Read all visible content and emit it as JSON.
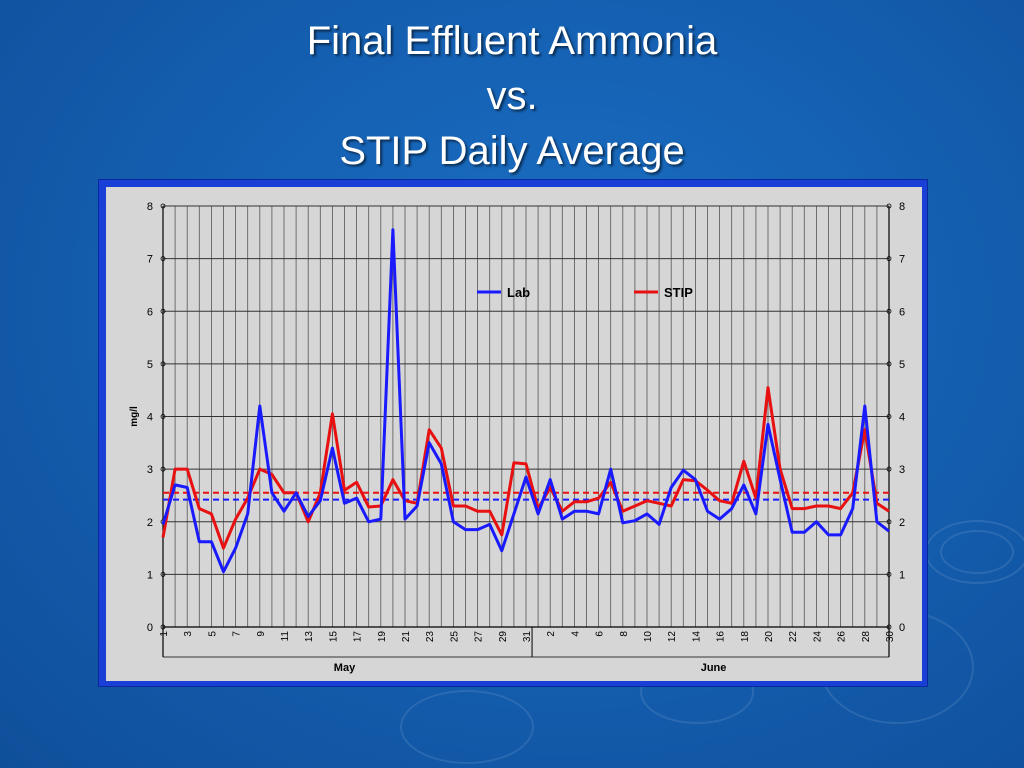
{
  "slide": {
    "title_lines": [
      "Final Effluent Ammonia",
      "vs.",
      "STIP Daily Average"
    ]
  },
  "chart_data": {
    "type": "line",
    "ylabel": "mg/l",
    "ylim": [
      0,
      8
    ],
    "yticks": [
      0,
      1,
      2,
      3,
      4,
      5,
      6,
      7,
      8
    ],
    "grid": true,
    "legend_placement": "top-center",
    "x_tick_labels": [
      "1",
      "3",
      "5",
      "7",
      "9",
      "11",
      "13",
      "15",
      "17",
      "19",
      "21",
      "23",
      "25",
      "27",
      "29",
      "31",
      "2",
      "4",
      "6",
      "8",
      "10",
      "12",
      "14",
      "16",
      "18",
      "20",
      "22",
      "24",
      "26",
      "28",
      "30"
    ],
    "x_group_labels": [
      {
        "label": "May"
      },
      {
        "label": "June"
      }
    ],
    "series": [
      {
        "name": "Lab",
        "color": "#1a1aff",
        "values": [
          1.95,
          2.7,
          2.65,
          1.62,
          1.62,
          1.05,
          1.5,
          2.15,
          4.2,
          2.55,
          2.2,
          2.55,
          2.1,
          2.4,
          3.4,
          2.35,
          2.45,
          2.0,
          2.05,
          7.55,
          2.05,
          2.3,
          3.5,
          3.1,
          2.0,
          1.85,
          1.85,
          1.95,
          1.45,
          2.15,
          2.85,
          2.15,
          2.8,
          2.05,
          2.2,
          2.2,
          2.15,
          3.0,
          1.98,
          2.02,
          2.15,
          1.95,
          2.65,
          2.98,
          2.8,
          2.2,
          2.05,
          2.25,
          2.7,
          2.15,
          3.85,
          2.8,
          1.8,
          1.8,
          2.0,
          1.75,
          1.75,
          2.25,
          4.2,
          2.0,
          1.82
        ]
      },
      {
        "name": "STIP",
        "color": "#e81010",
        "values": [
          1.7,
          3.0,
          3.0,
          2.25,
          2.15,
          1.5,
          2.05,
          2.45,
          3.0,
          2.9,
          2.55,
          2.55,
          2.0,
          2.55,
          4.05,
          2.6,
          2.75,
          2.28,
          2.3,
          2.8,
          2.4,
          2.35,
          3.75,
          3.4,
          2.3,
          2.3,
          2.2,
          2.2,
          1.75,
          3.12,
          3.1,
          2.25,
          2.65,
          2.2,
          2.38,
          2.38,
          2.45,
          2.75,
          2.2,
          2.3,
          2.4,
          2.35,
          2.3,
          2.8,
          2.78,
          2.6,
          2.4,
          2.35,
          3.15,
          2.45,
          4.55,
          3.0,
          2.25,
          2.25,
          2.3,
          2.3,
          2.25,
          2.55,
          3.75,
          2.35,
          2.2
        ]
      }
    ],
    "reference_lines": [
      {
        "series": "Lab",
        "value": 2.42,
        "style": "dashed"
      },
      {
        "series": "STIP",
        "value": 2.55,
        "style": "dashed"
      }
    ],
    "colors": {
      "plot_background": "#d6d6d6",
      "grid": "#555555",
      "frame": "#1a3fd6"
    }
  }
}
